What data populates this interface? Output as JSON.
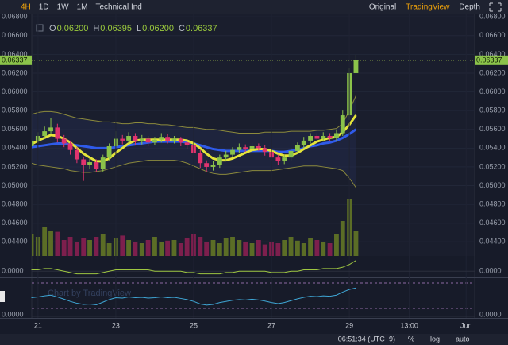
{
  "toolbar": {
    "intervals": [
      "4H",
      "1D",
      "1W",
      "1M"
    ],
    "indicators": "Technical Ind",
    "views": [
      "Original",
      "TradingView",
      "Depth"
    ]
  },
  "footer": {
    "clock": "06:51:34 (UTC+9)",
    "buttons": [
      "%",
      "log",
      "auto"
    ]
  },
  "chart_data": {
    "type": "candlestick",
    "watermark": "Chart by TradingView",
    "legend": [
      {
        "key": "O",
        "value": "0.06200"
      },
      {
        "key": "H",
        "value": "0.06395"
      },
      {
        "key": "L",
        "value": "0.06200"
      },
      {
        "key": "C",
        "value": "0.06337"
      }
    ],
    "x": [
      20.83,
      21,
      21.17,
      21.33,
      21.5,
      21.67,
      21.83,
      22,
      22.17,
      22.33,
      22.5,
      22.67,
      22.83,
      23,
      23.17,
      23.33,
      23.5,
      23.67,
      23.83,
      24,
      24.17,
      24.33,
      24.5,
      24.67,
      24.83,
      25,
      25.17,
      25.33,
      25.5,
      25.67,
      25.83,
      26,
      26.17,
      26.33,
      26.5,
      26.67,
      26.83,
      27,
      27.17,
      27.33,
      27.5,
      27.67,
      27.83,
      28,
      28.17,
      28.33,
      28.5,
      28.67,
      28.83,
      29,
      29.17
    ],
    "xlim": [
      20.84,
      32.22
    ],
    "xticks": [
      21,
      23,
      25,
      27,
      29,
      {
        "value": 30.54,
        "label": "13:00"
      },
      {
        "value": 32,
        "label": "Jun"
      }
    ],
    "ylim": [
      0.0425,
      0.0685
    ],
    "yticks": [
      {
        "value": 0.044,
        "label": "0.04400"
      },
      {
        "value": 0.046,
        "label": "0.04600"
      },
      {
        "value": 0.048,
        "label": "0.04800"
      },
      {
        "value": 0.05,
        "label": "0.05000"
      },
      {
        "value": 0.052,
        "label": "0.05200"
      },
      {
        "value": 0.054,
        "label": "0.05400"
      },
      {
        "value": 0.056,
        "label": "0.05600"
      },
      {
        "value": 0.058,
        "label": "0.05800"
      },
      {
        "value": 0.06,
        "label": "0.06000"
      },
      {
        "value": 0.062,
        "label": "0.06200"
      },
      {
        "value": 0.064,
        "label": "0.06400"
      },
      {
        "value": 0.066,
        "label": "0.06600"
      },
      {
        "value": 0.068,
        "label": "0.06800"
      }
    ],
    "last_price": {
      "value": 0.06337,
      "label": "0.06337"
    },
    "candles": {
      "up_color": "#8bc34a",
      "down_color": "#e0336e",
      "open": [
        0.0542,
        0.0548,
        0.0553,
        0.0558,
        0.0562,
        0.055,
        0.0545,
        0.0538,
        0.0528,
        0.0522,
        0.0525,
        0.0518,
        0.053,
        0.0542,
        0.055,
        0.0548,
        0.0553,
        0.0547,
        0.055,
        0.0546,
        0.0549,
        0.0552,
        0.0548,
        0.055,
        0.0546,
        0.0543,
        0.0535,
        0.0524,
        0.052,
        0.0522,
        0.053,
        0.0533,
        0.0538,
        0.0541,
        0.0539,
        0.0542,
        0.054,
        0.0536,
        0.053,
        0.0526,
        0.053,
        0.0537,
        0.0543,
        0.0548,
        0.0553,
        0.055,
        0.0553,
        0.0551,
        0.0556,
        0.0575,
        0.062
      ],
      "high": [
        0.0553,
        0.0557,
        0.0563,
        0.0572,
        0.0566,
        0.0554,
        0.0548,
        0.0541,
        0.0531,
        0.0529,
        0.0528,
        0.0533,
        0.0545,
        0.0558,
        0.0554,
        0.0557,
        0.0556,
        0.0554,
        0.0553,
        0.0552,
        0.0556,
        0.0555,
        0.0553,
        0.0552,
        0.0549,
        0.0546,
        0.0538,
        0.0527,
        0.0526,
        0.0533,
        0.0537,
        0.0541,
        0.0545,
        0.0544,
        0.0546,
        0.0545,
        0.0543,
        0.0539,
        0.0533,
        0.0533,
        0.054,
        0.0546,
        0.0552,
        0.0556,
        0.0556,
        0.0557,
        0.0556,
        0.056,
        0.058,
        0.0625,
        0.06395
      ],
      "low": [
        0.0538,
        0.0545,
        0.055,
        0.0555,
        0.0546,
        0.0541,
        0.0533,
        0.0524,
        0.0505,
        0.0518,
        0.0514,
        0.0515,
        0.0527,
        0.0539,
        0.0544,
        0.0545,
        0.0543,
        0.0544,
        0.0542,
        0.0543,
        0.0546,
        0.0545,
        0.0545,
        0.0542,
        0.0539,
        0.053,
        0.0519,
        0.0514,
        0.0516,
        0.0519,
        0.0527,
        0.053,
        0.0535,
        0.0536,
        0.0536,
        0.0537,
        0.0532,
        0.0526,
        0.0522,
        0.0523,
        0.0527,
        0.0534,
        0.054,
        0.0545,
        0.0547,
        0.0547,
        0.0548,
        0.0548,
        0.0553,
        0.057,
        0.062
      ],
      "close": [
        0.0548,
        0.0553,
        0.0558,
        0.0562,
        0.055,
        0.0545,
        0.0538,
        0.0528,
        0.0522,
        0.0525,
        0.0518,
        0.053,
        0.0542,
        0.055,
        0.0548,
        0.0553,
        0.0547,
        0.055,
        0.0546,
        0.0549,
        0.0552,
        0.0548,
        0.055,
        0.0546,
        0.0543,
        0.0535,
        0.0524,
        0.052,
        0.0522,
        0.053,
        0.0533,
        0.0538,
        0.0541,
        0.0539,
        0.0542,
        0.054,
        0.0536,
        0.053,
        0.0526,
        0.053,
        0.0537,
        0.0543,
        0.0548,
        0.0553,
        0.055,
        0.0553,
        0.0551,
        0.0556,
        0.0575,
        0.062,
        0.06337
      ]
    },
    "overlays": [
      {
        "color": "#8c8a3c",
        "values": [
          0.0576,
          0.0578,
          0.0579,
          0.0579,
          0.0578,
          0.0576,
          0.0574,
          0.0572,
          0.0571,
          0.057,
          0.0569,
          0.0568,
          0.0568,
          0.0567,
          0.0566,
          0.0566,
          0.0567,
          0.0567,
          0.0566,
          0.0566,
          0.0565,
          0.0565,
          0.0564,
          0.0563,
          0.0562,
          0.0562,
          0.0561,
          0.056,
          0.056,
          0.0559,
          0.0558,
          0.0557,
          0.0556,
          0.0556,
          0.0556,
          0.0556,
          0.0557,
          0.0557,
          0.0557,
          0.0557,
          0.0558,
          0.0558,
          0.0558,
          0.0558,
          0.0559,
          0.0559,
          0.056,
          0.0561,
          0.0566,
          0.058,
          0.0596
        ]
      },
      {
        "color": "#8c8a3c",
        "values": [
          0.0524,
          0.0522,
          0.0521,
          0.052,
          0.0519,
          0.0518,
          0.0516,
          0.0515,
          0.0514,
          0.0514,
          0.0515,
          0.0516,
          0.0518,
          0.052,
          0.0522,
          0.0524,
          0.0525,
          0.0526,
          0.0527,
          0.0527,
          0.0527,
          0.0527,
          0.0527,
          0.0526,
          0.0524,
          0.0521,
          0.0518,
          0.0515,
          0.0513,
          0.0512,
          0.0512,
          0.0513,
          0.0514,
          0.0515,
          0.0516,
          0.0516,
          0.0516,
          0.0516,
          0.0517,
          0.0518,
          0.0519,
          0.052,
          0.0521,
          0.0521,
          0.0521,
          0.052,
          0.0519,
          0.0518,
          0.0516,
          0.0508,
          0.0498
        ]
      },
      {
        "color": "#2f5bea",
        "values": [
          0.0541,
          0.0542,
          0.0543,
          0.0544,
          0.0545,
          0.0545,
          0.0544,
          0.0543,
          0.0542,
          0.0541,
          0.054,
          0.054,
          0.054,
          0.0541,
          0.0542,
          0.0543,
          0.0544,
          0.0545,
          0.0546,
          0.0547,
          0.0547,
          0.0547,
          0.0547,
          0.0547,
          0.0546,
          0.0545,
          0.0543,
          0.0541,
          0.0539,
          0.0538,
          0.0537,
          0.0537,
          0.0537,
          0.0537,
          0.0537,
          0.0537,
          0.0537,
          0.0537,
          0.0536,
          0.0536,
          0.0537,
          0.0538,
          0.054,
          0.0542,
          0.0543,
          0.0545,
          0.0546,
          0.0548,
          0.0551,
          0.0555,
          0.056
        ]
      },
      {
        "color": "#e4e43a",
        "values": [
          0.0544,
          0.0548,
          0.0551,
          0.0554,
          0.0553,
          0.055,
          0.0546,
          0.054,
          0.0534,
          0.053,
          0.0526,
          0.0526,
          0.0529,
          0.0535,
          0.054,
          0.0545,
          0.0548,
          0.0549,
          0.0549,
          0.0549,
          0.0549,
          0.0549,
          0.0549,
          0.0549,
          0.0548,
          0.0545,
          0.054,
          0.0534,
          0.0529,
          0.0527,
          0.0527,
          0.0529,
          0.0532,
          0.0535,
          0.0538,
          0.0539,
          0.0539,
          0.0537,
          0.0534,
          0.0532,
          0.0532,
          0.0535,
          0.0539,
          0.0543,
          0.0547,
          0.0549,
          0.0551,
          0.0552,
          0.0557,
          0.0565,
          0.0575
        ]
      }
    ],
    "volume": {
      "ylim": [
        0,
        100
      ],
      "up_color": "#5b6d26",
      "down_color": "#7d1f4d",
      "values": [
        35,
        30,
        45,
        40,
        38,
        25,
        30,
        22,
        28,
        25,
        30,
        35,
        20,
        28,
        32,
        25,
        22,
        20,
        25,
        30,
        22,
        24,
        25,
        20,
        28,
        35,
        30,
        22,
        25,
        20,
        28,
        30,
        25,
        22,
        20,
        25,
        18,
        22,
        20,
        25,
        30,
        24,
        20,
        28,
        25,
        22,
        20,
        35,
        55,
        90,
        40
      ]
    },
    "panes": [
      {
        "color": "#9ec641",
        "ylim": [
          -0.0004,
          0.0009
        ],
        "yticks": [
          {
            "value": 0,
            "label": "0.0000"
          }
        ],
        "values": [
          0.0001,
          0.0001,
          0.0002,
          0.0002,
          0.0001,
          0,
          -0.0001,
          -0.0002,
          -0.0002,
          -0.0002,
          -0.0002,
          -0.0001,
          0,
          0.0001,
          0.0001,
          0.0001,
          0.0001,
          0.0001,
          0.0001,
          0,
          0,
          0,
          0,
          0,
          -0.0001,
          -0.0001,
          -0.0002,
          -0.0002,
          -0.0002,
          -0.0002,
          -0.0001,
          -0.0001,
          0,
          0,
          0,
          0,
          0,
          -0.0001,
          -0.0001,
          -0.0001,
          0,
          0,
          0.0001,
          0.0001,
          0.0001,
          0.0002,
          0.0002,
          0.0002,
          0.0003,
          0.0005,
          0.0008
        ]
      },
      {
        "color": "#3fa7d6",
        "ylim": [
          0,
          100
        ],
        "yticks": [
          {
            "value": 0,
            "label": "0.0000"
          }
        ],
        "values": [
          50,
          52,
          55,
          57,
          52,
          46,
          40,
          35,
          32,
          33,
          31,
          38,
          45,
          50,
          49,
          52,
          50,
          51,
          49,
          50,
          52,
          50,
          51,
          48,
          45,
          40,
          33,
          30,
          32,
          37,
          40,
          43,
          45,
          44,
          46,
          44,
          41,
          37,
          34,
          37,
          42,
          47,
          51,
          54,
          53,
          55,
          54,
          57,
          65,
          72,
          76
        ]
      }
    ]
  }
}
